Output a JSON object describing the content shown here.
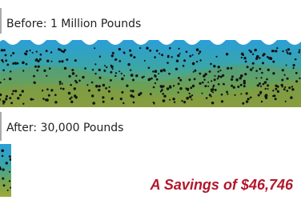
{
  "before": {
    "label": "Before: 1 Million Pounds"
  },
  "after": {
    "label": "After: 30,000 Pounds"
  },
  "savings": {
    "label": "A Savings of $46,746"
  }
}
